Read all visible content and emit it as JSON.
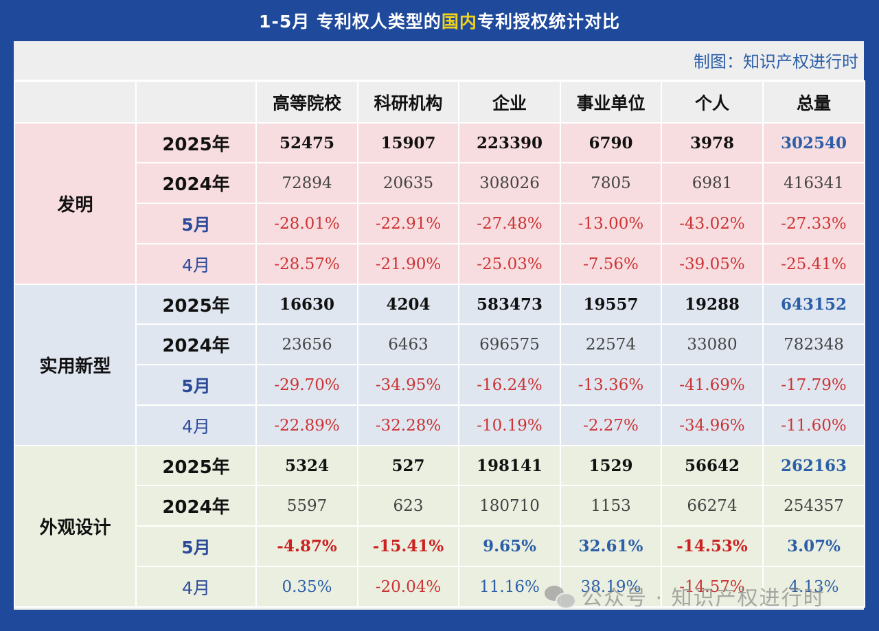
{
  "title_prefix": "1-5月  专利权人类型的",
  "title_highlight": "国内",
  "title_suffix": "专利授权统计对比",
  "credit": "制图：知识产权进行时",
  "headers": [
    "",
    "",
    "高等院校",
    "科研机构",
    "企业",
    "事业单位",
    "个人",
    "总量"
  ],
  "groups": [
    {
      "name": "发明",
      "rows": [
        {
          "label": "2025年",
          "values": [
            "52475",
            "15907",
            "223390",
            "6790",
            "3978",
            "302540"
          ]
        },
        {
          "label": "2024年",
          "values": [
            "72894",
            "20635",
            "308026",
            "7805",
            "6981",
            "416341"
          ]
        },
        {
          "label": "5月",
          "values": [
            "-28.01%",
            "-22.91%",
            "-27.48%",
            "-13.00%",
            "-43.02%",
            "-27.33%"
          ]
        },
        {
          "label": "4月",
          "values": [
            "-28.57%",
            "-21.90%",
            "-25.03%",
            "-7.56%",
            "-39.05%",
            "-25.41%"
          ]
        }
      ]
    },
    {
      "name": "实用新型",
      "rows": [
        {
          "label": "2025年",
          "values": [
            "16630",
            "4204",
            "583473",
            "19557",
            "19288",
            "643152"
          ]
        },
        {
          "label": "2024年",
          "values": [
            "23656",
            "6463",
            "696575",
            "22574",
            "33080",
            "782348"
          ]
        },
        {
          "label": "5月",
          "values": [
            "-29.70%",
            "-34.95%",
            "-16.24%",
            "-13.36%",
            "-41.69%",
            "-17.79%"
          ]
        },
        {
          "label": "4月",
          "values": [
            "-22.89%",
            "-32.28%",
            "-10.19%",
            "-2.27%",
            "-34.96%",
            "-11.60%"
          ]
        }
      ]
    },
    {
      "name": "外观设计",
      "rows": [
        {
          "label": "2025年",
          "values": [
            "5324",
            "527",
            "198141",
            "1529",
            "56642",
            "262163"
          ]
        },
        {
          "label": "2024年",
          "values": [
            "5597",
            "623",
            "180710",
            "1153",
            "66274",
            "254357"
          ]
        },
        {
          "label": "5月",
          "values": [
            "-4.87%",
            "-15.41%",
            "9.65%",
            "32.61%",
            "-14.53%",
            "3.07%"
          ]
        },
        {
          "label": "4月",
          "values": [
            "0.35%",
            "-20.04%",
            "11.16%",
            "38.19%",
            "-14.57%",
            "4.13%"
          ]
        }
      ]
    }
  ],
  "watermark": "公众号 · 知识产权进行时",
  "colors": {
    "background": "#1f4a9c",
    "title_highlight": "#f2d21a",
    "negative": "#cc3333",
    "positive": "#2c5fa8",
    "total": "#2c5fa8"
  }
}
